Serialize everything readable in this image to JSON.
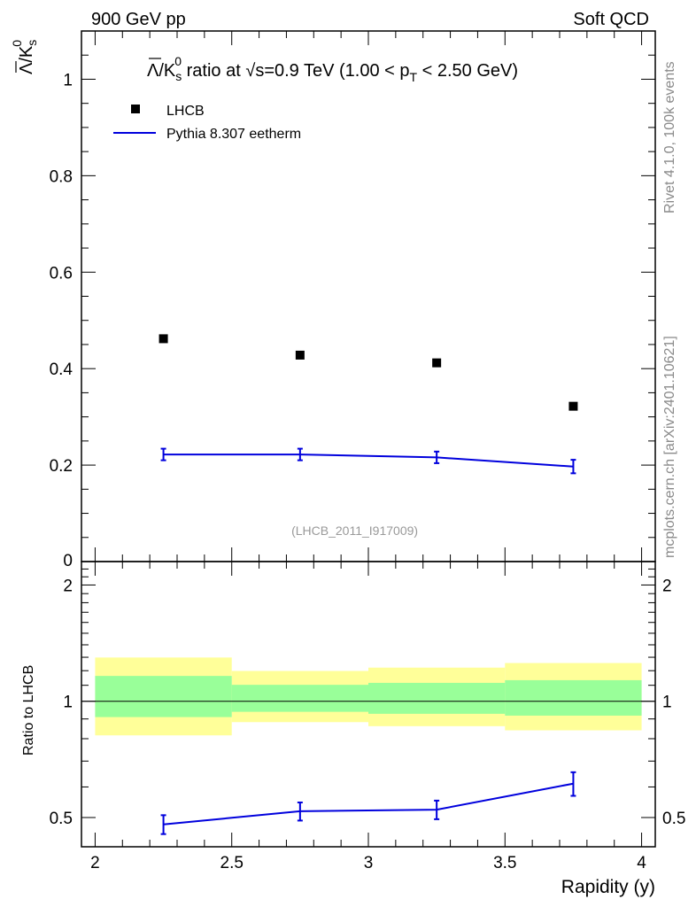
{
  "header": {
    "left": "900 GeV pp",
    "right": "Soft QCD"
  },
  "side_labels": {
    "rivet": "Rivet 4.1.0,  100k events",
    "mcplots": "mcplots.cern.ch [arXiv:2401.10621]"
  },
  "chart_data": [
    {
      "type": "scatter",
      "title": {
        "prefix": "Λ/K",
        "sub": "s",
        "sup": "0",
        "mid": " ratio at ",
        "sqrt": "√",
        "after_sqrt": "s=0.9 TeV (1.00 < p",
        "pt_sub": "T",
        "end": " < 2.50 GeV)"
      },
      "ylabel": {
        "main": "Λ/K",
        "sub": "s",
        "sup": "0"
      },
      "xlim": [
        1.95,
        4.05
      ],
      "ylim": [
        0,
        1.1
      ],
      "yticks": [
        0,
        0.2,
        0.4,
        0.6,
        0.8,
        1
      ],
      "ytick_labels": [
        "0",
        "0.2",
        "0.4",
        "0.6",
        "0.8",
        "1"
      ],
      "watermark": "(LHCB_2011_I917009)",
      "legend": [
        "LHCB",
        "Pythia 8.307 eetherm"
      ],
      "series": [
        {
          "name": "LHCB",
          "style": "markers",
          "color": "#000000",
          "x": [
            2.25,
            2.75,
            3.25,
            3.75
          ],
          "y": [
            0.462,
            0.428,
            0.412,
            0.322
          ]
        },
        {
          "name": "Pythia 8.307 eetherm",
          "style": "line",
          "color": "#0000dd",
          "x": [
            2.25,
            2.75,
            3.25,
            3.75
          ],
          "y": [
            0.222,
            0.222,
            0.216,
            0.197
          ],
          "yerr": [
            0.012,
            0.012,
            0.012,
            0.014
          ]
        }
      ]
    },
    {
      "type": "line",
      "ylabel": "Ratio to LHCB",
      "xlabel": "Rapidity (y)",
      "xlim": [
        1.95,
        4.05
      ],
      "ylim": [
        0.42,
        2.3
      ],
      "yscale": "log",
      "xticks": [
        2,
        2.5,
        3,
        3.5,
        4
      ],
      "xtick_labels": [
        "2",
        "2.5",
        "3",
        "3.5",
        "4"
      ],
      "yticks": [
        0.5,
        1,
        2
      ],
      "ytick_labels": [
        "0.5",
        "1",
        "2"
      ],
      "bands": {
        "bins": [
          [
            2.0,
            2.5
          ],
          [
            2.5,
            3.0
          ],
          [
            3.0,
            3.5
          ],
          [
            3.5,
            4.0
          ]
        ],
        "yellow": [
          [
            0.816,
            1.298
          ],
          [
            0.883,
            1.198
          ],
          [
            0.862,
            1.222
          ],
          [
            0.841,
            1.256
          ]
        ],
        "green": [
          [
            0.91,
            1.163
          ],
          [
            0.939,
            1.103
          ],
          [
            0.928,
            1.116
          ],
          [
            0.918,
            1.134
          ]
        ],
        "yellow_color": "#ffff99",
        "green_color": "#99ff99"
      },
      "series": [
        {
          "name": "Pythia 8.307 eetherm / LHCB",
          "color": "#0000dd",
          "x": [
            2.25,
            2.75,
            3.25,
            3.75
          ],
          "y": [
            0.48,
            0.519,
            0.524,
            0.612
          ],
          "yerr": [
            0.027,
            0.028,
            0.029,
            0.043
          ]
        }
      ]
    }
  ]
}
